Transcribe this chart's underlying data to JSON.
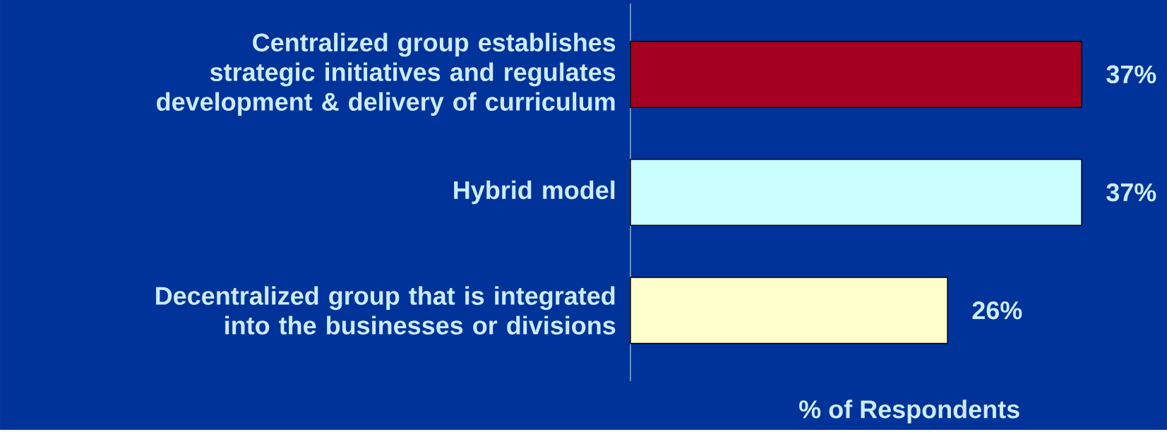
{
  "chart_data": {
    "type": "bar",
    "orientation": "horizontal",
    "categories": [
      "Centralized group establishes strategic initiatives and regulates development & delivery of curriculum",
      "Hybrid model",
      "Decentralized group that is integrated into the businesses or divisions"
    ],
    "values": [
      37,
      37,
      26
    ],
    "colors": [
      "#a50021",
      "#ccffff",
      "#ffffcc"
    ],
    "value_labels": [
      "37%",
      "37%",
      "26%"
    ],
    "xlabel": "% of Respondents",
    "xlim": [
      0,
      44
    ]
  }
}
